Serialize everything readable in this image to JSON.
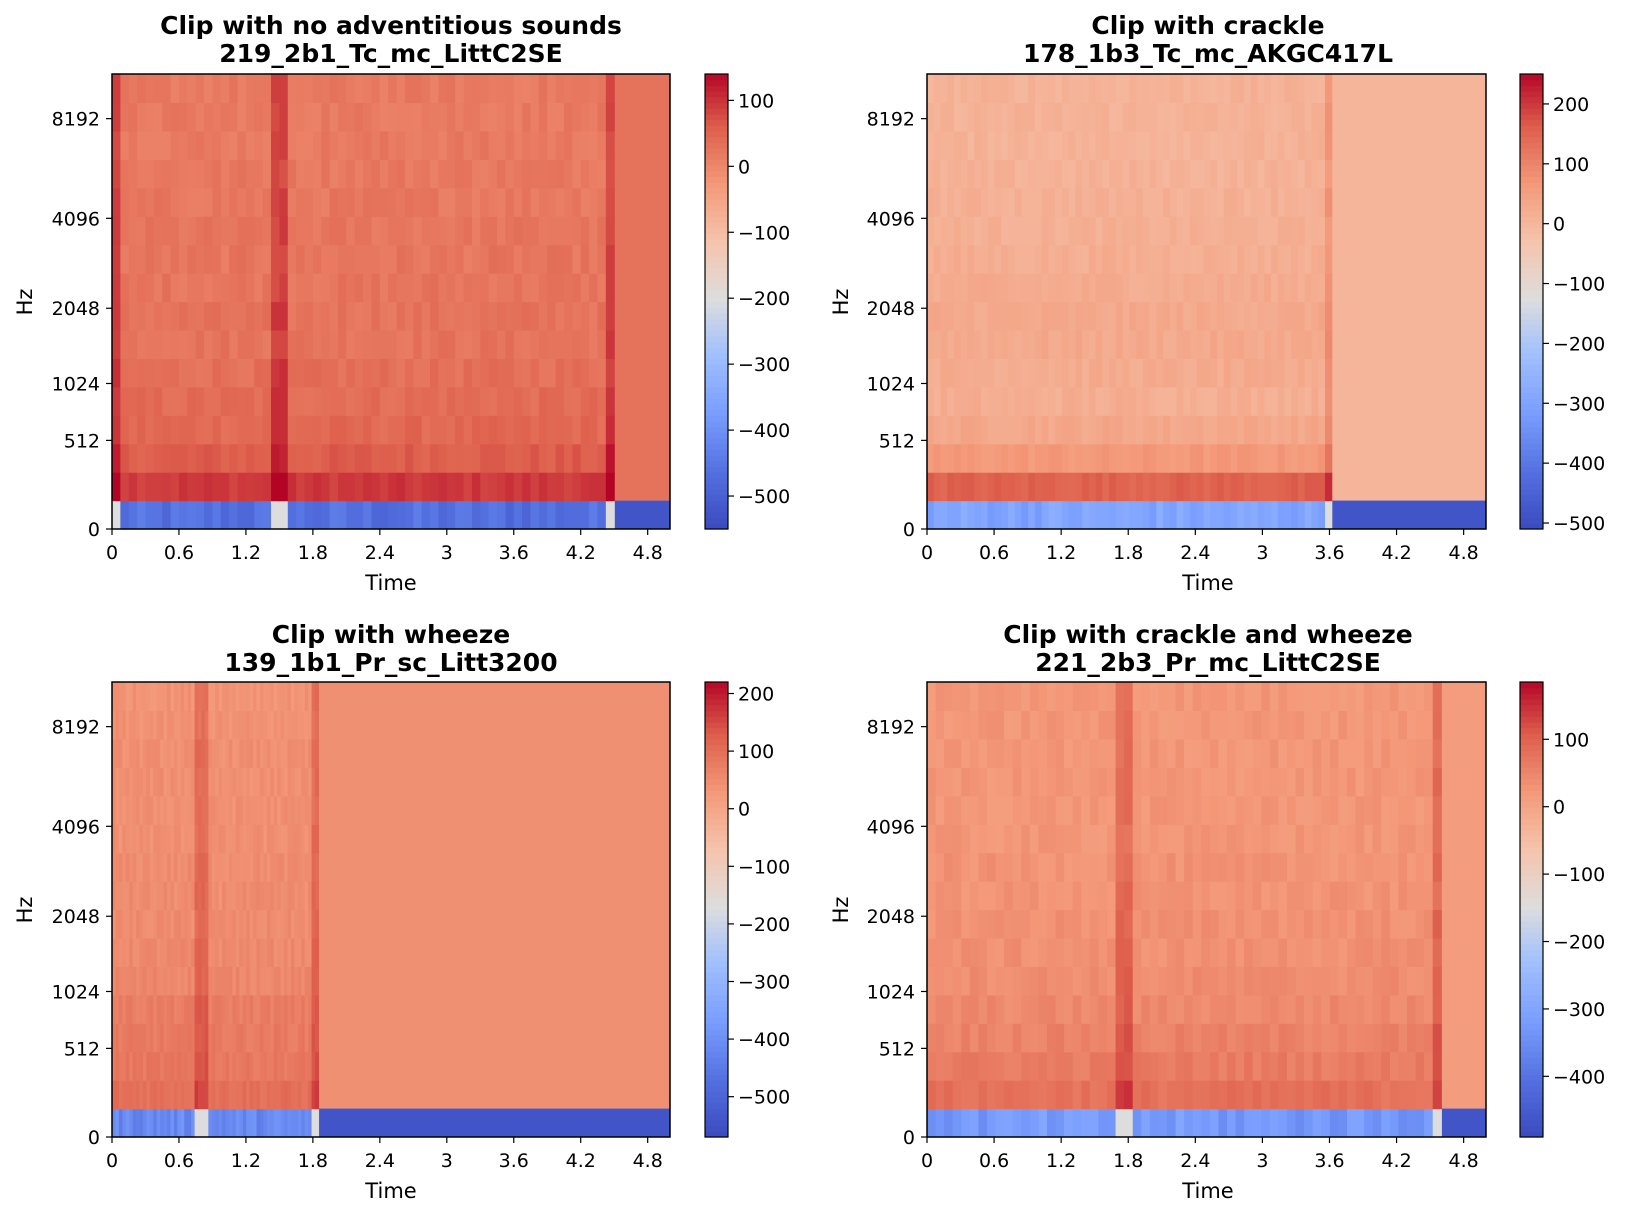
{
  "colormap": {
    "name": "coolwarm",
    "low": "#3b4cc0",
    "mid": "#dddddd",
    "high": "#b40426"
  },
  "chart_data": [
    {
      "type": "heatmap",
      "title": "Clip with no adventitious sounds",
      "subtitle": "219_2b1_Tc_mc_LittC2SE",
      "xlabel": "Time",
      "ylabel": "Hz",
      "xlim": [
        0,
        5.0
      ],
      "x_ticks": [
        "0",
        "0.6",
        "1.2",
        "1.8",
        "2.4",
        "3",
        "3.6",
        "4.2",
        "4.8"
      ],
      "y_ticks": [
        "0",
        "512",
        "1024",
        "2048",
        "4096",
        "8192"
      ],
      "y_scale": "mel",
      "colorbar_range": [
        -550,
        140
      ],
      "colorbar_ticks": [
        "100",
        "0",
        "−100",
        "−200",
        "−300",
        "−400",
        "−500"
      ],
      "signal_end": 4.5,
      "bands_mean": [
        -470,
        90,
        55,
        40,
        35,
        30,
        25,
        25,
        22,
        20,
        20,
        18,
        18,
        15,
        15,
        15
      ],
      "pad_value": 25,
      "spikes": [
        0.05,
        1.5,
        4.5
      ]
    },
    {
      "type": "heatmap",
      "title": "Clip with crackle",
      "subtitle": "178_1b3_Tc_mc_AKGC417L",
      "xlabel": "Time",
      "ylabel": "Hz",
      "xlim": [
        0,
        5.0
      ],
      "x_ticks": [
        "0",
        "0.6",
        "1.2",
        "1.8",
        "2.4",
        "3",
        "3.6",
        "4.2",
        "4.8"
      ],
      "y_ticks": [
        "0",
        "512",
        "1024",
        "2048",
        "4096",
        "8192"
      ],
      "y_scale": "mel",
      "colorbar_range": [
        -510,
        250
      ],
      "colorbar_ticks": [
        "200",
        "100",
        "0",
        "−100",
        "−200",
        "−300",
        "−400",
        "−500"
      ],
      "signal_end": 3.62,
      "bands_mean": [
        -300,
        150,
        60,
        30,
        15,
        20,
        25,
        25,
        20,
        15,
        10,
        10,
        5,
        5,
        5,
        5
      ],
      "pad_value": 0,
      "spikes": [
        3.62
      ]
    },
    {
      "type": "heatmap",
      "title": "Clip with wheeze",
      "subtitle": "139_1b1_Pr_sc_Litt3200",
      "xlabel": "Time",
      "ylabel": "Hz",
      "xlim": [
        0,
        5.0
      ],
      "x_ticks": [
        "0",
        "0.6",
        "1.2",
        "1.8",
        "2.4",
        "3",
        "3.6",
        "4.2",
        "4.8"
      ],
      "y_ticks": [
        "0",
        "512",
        "1024",
        "2048",
        "4096",
        "8192"
      ],
      "y_scale": "mel",
      "colorbar_range": [
        -570,
        220
      ],
      "colorbar_ticks": [
        "200",
        "100",
        "0",
        "−100",
        "−200",
        "−300",
        "−400",
        "−500"
      ],
      "signal_end": 1.85,
      "bands_mean": [
        -420,
        95,
        80,
        75,
        70,
        55,
        50,
        45,
        45,
        45,
        40,
        40,
        40,
        40,
        35,
        35
      ],
      "pad_value": 40,
      "spikes": [
        0.8,
        1.85
      ]
    },
    {
      "type": "heatmap",
      "title": "Clip with crackle and wheeze",
      "subtitle": "221_2b3_Pr_mc_LittC2SE",
      "xlabel": "Time",
      "ylabel": "Hz",
      "xlim": [
        0,
        5.0
      ],
      "x_ticks": [
        "0",
        "0.6",
        "1.2",
        "1.8",
        "2.4",
        "3",
        "3.6",
        "4.2",
        "4.8"
      ],
      "y_ticks": [
        "0",
        "512",
        "1024",
        "2048",
        "4096",
        "8192"
      ],
      "y_scale": "mel",
      "colorbar_range": [
        -490,
        185
      ],
      "colorbar_ticks": [
        "100",
        "0",
        "−100",
        "−200",
        "−300",
        "−400"
      ],
      "signal_end": 4.6,
      "bands_mean": [
        -330,
        75,
        60,
        50,
        40,
        35,
        30,
        30,
        25,
        25,
        20,
        20,
        20,
        20,
        20,
        20
      ],
      "pad_value": 10,
      "spikes": [
        1.75,
        4.6
      ]
    }
  ]
}
